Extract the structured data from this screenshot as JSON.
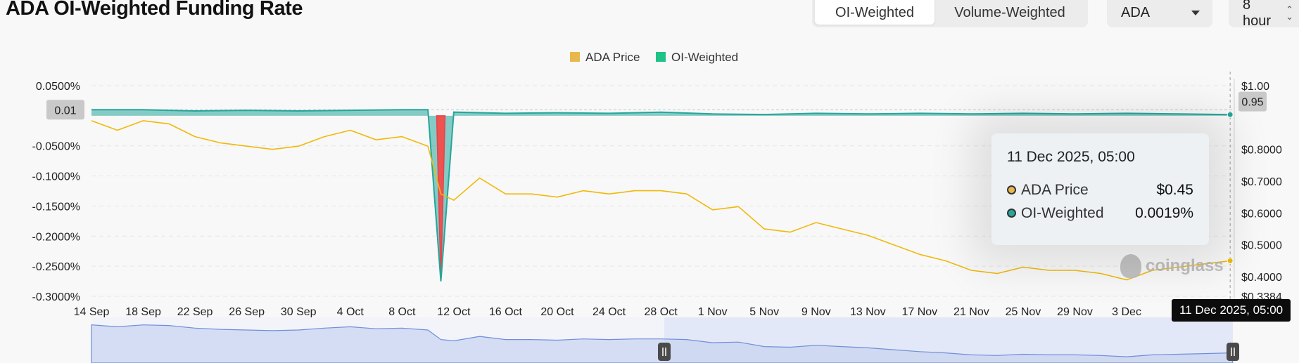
{
  "header": {
    "title": "ADA OI-Weighted Funding Rate",
    "weight_tabs": [
      {
        "label": "OI-Weighted",
        "active": true
      },
      {
        "label": "Volume-Weighted",
        "active": false
      }
    ],
    "coin_select": "ADA",
    "interval_select": "8 hour"
  },
  "colors": {
    "price": "#f0b90b",
    "funding_positive": "#26a69a",
    "funding_negative": "#ef5350",
    "navigator": "#6f8fd8"
  },
  "chart_data": {
    "type": "line",
    "x_tick_labels": [
      "14 Sep",
      "18 Sep",
      "22 Sep",
      "26 Sep",
      "30 Sep",
      "4 Oct",
      "8 Oct",
      "12 Oct",
      "16 Oct",
      "20 Oct",
      "24 Oct",
      "28 Oct",
      "1 Nov",
      "5 Nov",
      "9 Nov",
      "13 Nov",
      "17 Nov",
      "21 Nov",
      "25 Nov",
      "29 Nov",
      "3 Dec"
    ],
    "left_axis": {
      "ticks": [
        "0.0500%",
        "0.01",
        "-0.0500%",
        "-0.1000%",
        "-0.1500%",
        "-0.2000%",
        "-0.2500%",
        "-0.3000%"
      ],
      "ylim": [
        -0.3,
        0.05
      ]
    },
    "right_axis": {
      "ticks": [
        "$1.00",
        "0.95",
        "$0.8000",
        "$0.7000",
        "$0.6000",
        "$0.5000",
        "$0.4000",
        "$0.3384"
      ],
      "ylim": [
        0.3384,
        1.0
      ]
    },
    "legend": [
      "ADA Price",
      "OI-Weighted"
    ],
    "series": [
      {
        "name": "ADA Price",
        "axis": "right",
        "x": [
          "14 Sep",
          "16 Sep",
          "18 Sep",
          "20 Sep",
          "22 Sep",
          "24 Sep",
          "26 Sep",
          "28 Sep",
          "30 Sep",
          "2 Oct",
          "4 Oct",
          "6 Oct",
          "8 Oct",
          "10 Oct",
          "11 Oct",
          "12 Oct",
          "14 Oct",
          "16 Oct",
          "18 Oct",
          "20 Oct",
          "22 Oct",
          "24 Oct",
          "26 Oct",
          "28 Oct",
          "30 Oct",
          "1 Nov",
          "3 Nov",
          "5 Nov",
          "7 Nov",
          "9 Nov",
          "11 Nov",
          "13 Nov",
          "15 Nov",
          "17 Nov",
          "19 Nov",
          "21 Nov",
          "23 Nov",
          "25 Nov",
          "27 Nov",
          "29 Nov",
          "1 Dec",
          "3 Dec",
          "5 Dec",
          "7 Dec",
          "9 Dec",
          "11 Dec"
        ],
        "values": [
          0.89,
          0.86,
          0.89,
          0.88,
          0.84,
          0.82,
          0.81,
          0.8,
          0.81,
          0.84,
          0.86,
          0.83,
          0.84,
          0.81,
          0.66,
          0.64,
          0.71,
          0.66,
          0.66,
          0.65,
          0.67,
          0.66,
          0.67,
          0.67,
          0.66,
          0.61,
          0.62,
          0.55,
          0.54,
          0.57,
          0.55,
          0.53,
          0.5,
          0.47,
          0.45,
          0.42,
          0.41,
          0.43,
          0.42,
          0.42,
          0.41,
          0.39,
          0.42,
          0.43,
          0.44,
          0.45
        ]
      },
      {
        "name": "OI-Weighted",
        "axis": "left",
        "x": [
          "14 Sep",
          "18 Sep",
          "22 Sep",
          "26 Sep",
          "30 Sep",
          "4 Oct",
          "8 Oct",
          "10 Oct",
          "11 Oct",
          "12 Oct",
          "16 Oct",
          "20 Oct",
          "24 Oct",
          "28 Oct",
          "1 Nov",
          "5 Nov",
          "9 Nov",
          "13 Nov",
          "17 Nov",
          "21 Nov",
          "25 Nov",
          "29 Nov",
          "3 Dec",
          "7 Dec",
          "11 Dec"
        ],
        "values": [
          0.01,
          0.01,
          0.008,
          0.009,
          0.008,
          0.009,
          0.01,
          0.01,
          -0.275,
          0.006,
          0.004,
          0.005,
          0.004,
          0.006,
          0.003,
          0.002,
          0.004,
          0.003,
          0.004,
          0.003,
          0.004,
          0.003,
          0.004,
          0.003,
          0.0019
        ]
      }
    ],
    "tooltip": {
      "date": "11 Dec 2025, 05:00",
      "rows": [
        {
          "label": "ADA Price",
          "value": "$0.45"
        },
        {
          "label": "OI-Weighted",
          "value": "0.0019%"
        }
      ]
    },
    "crosshair_label": "11 Dec 2025, 05:00",
    "watermark": "coinglass"
  }
}
